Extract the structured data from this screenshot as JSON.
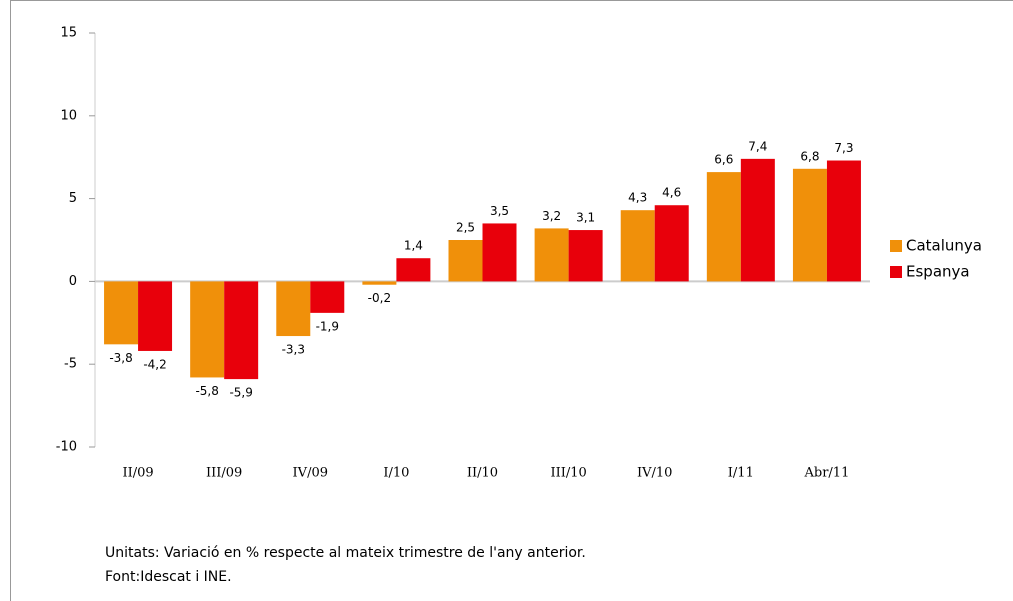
{
  "chart_data": {
    "type": "bar",
    "categories": [
      "II/09",
      "III/09",
      "IV/09",
      "I/10",
      "II/10",
      "III/10",
      "IV/10",
      "I/11",
      "Abr/11"
    ],
    "series": [
      {
        "name": "Catalunya",
        "color": "#f0900a",
        "values": [
          -3.8,
          -5.8,
          -3.3,
          -0.2,
          2.5,
          3.2,
          4.3,
          6.6,
          6.8
        ],
        "value_labels": [
          "-3,8",
          "-5,8",
          "-3,3",
          "-0,2",
          "2,5",
          "3,2",
          "4,3",
          "6,6",
          "6,8"
        ]
      },
      {
        "name": "Espanya",
        "color": "#e8000b",
        "values": [
          -4.2,
          -5.9,
          -1.9,
          1.4,
          3.5,
          3.1,
          4.6,
          7.4,
          7.3
        ],
        "value_labels": [
          "-4,2",
          "-5,9",
          "-1,9",
          "1,4",
          "3,5",
          "3,1",
          "4,6",
          "7,4",
          "7,3"
        ]
      }
    ],
    "ylim": [
      -10,
      15
    ],
    "yticks": [
      -10,
      -5,
      0,
      5,
      10,
      15
    ],
    "legend": "right",
    "notes": [
      "Unitats: Variació en % respecte al mateix trimestre de l'any anterior.",
      "Font:Idescat i INE."
    ]
  }
}
